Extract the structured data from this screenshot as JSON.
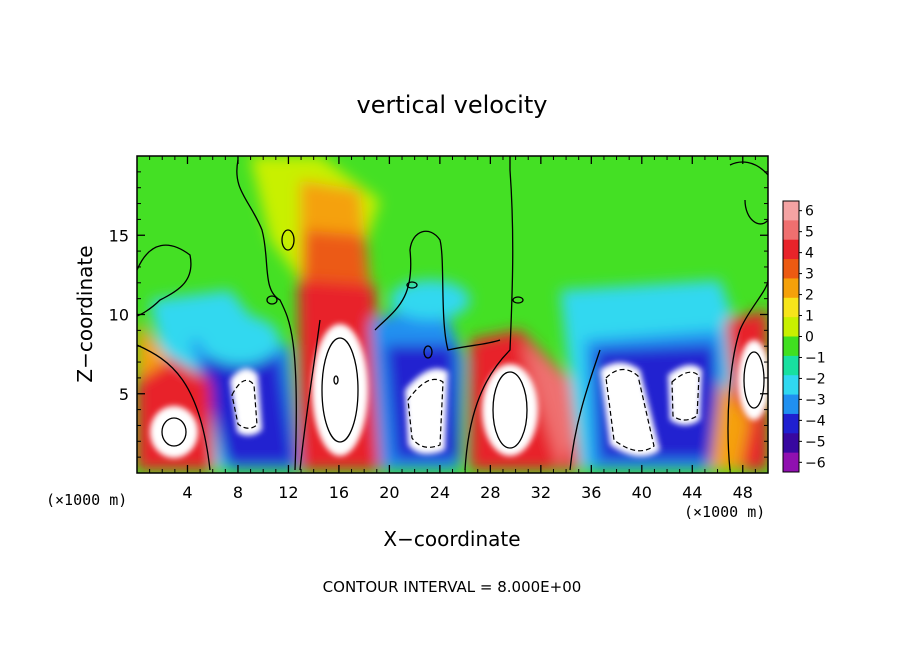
{
  "chart_data": {
    "type": "heatmap",
    "title": "vertical velocity",
    "xlabel": "X−coordinate",
    "ylabel": "Z−coordinate",
    "x_unit_left": "(×1000 m)",
    "x_unit_right": "(×1000 m)",
    "xlim": [
      0,
      50
    ],
    "ylim": [
      0,
      20
    ],
    "x_ticks": [
      4,
      8,
      12,
      16,
      20,
      24,
      28,
      32,
      36,
      40,
      44,
      48
    ],
    "x_tick_labels": [
      "4",
      "8",
      "12",
      "16",
      "20",
      "24",
      "28",
      "32",
      "36",
      "40",
      "44",
      "48"
    ],
    "y_ticks": [
      5,
      10,
      15
    ],
    "y_tick_labels": [
      "5",
      "10",
      "15"
    ],
    "contour_interval_label": "CONTOUR INTERVAL = 8.000E+00",
    "colorbar": {
      "levels": [
        6,
        5,
        4,
        3,
        2,
        1,
        0,
        -1,
        -2,
        -3,
        -4,
        -5,
        -6
      ],
      "labels": [
        "6",
        "5",
        "4",
        "3",
        "2",
        "1",
        "0",
        "−1",
        "−2",
        "−3",
        "−4",
        "−5",
        "−6"
      ],
      "colors": [
        "#f4a3a3",
        "#ef6f6f",
        "#e8232a",
        "#ec5a12",
        "#f5a10a",
        "#f7e51a",
        "#c8f000",
        "#40e020",
        "#18e0a0",
        "#30d8f0",
        "#2090f0",
        "#2020d0",
        "#3808a0",
        "#9010b0"
      ]
    },
    "features": [
      {
        "kind": "updraft",
        "x_center": 3.2,
        "z_top": 4.5
      },
      {
        "kind": "downdraft",
        "x_center": 8.6,
        "z_top": 6.5
      },
      {
        "kind": "updraft",
        "x_center": 16.4,
        "z_top": 10.0
      },
      {
        "kind": "downdraft",
        "x_center": 22.6,
        "z_top": 6.5
      },
      {
        "kind": "updraft",
        "x_center": 29.6,
        "z_top": 7.0
      },
      {
        "kind": "downdraft",
        "x_center": 39.0,
        "z_top": 7.0
      },
      {
        "kind": "downdraft",
        "x_center": 43.6,
        "z_top": 6.0
      },
      {
        "kind": "updraft",
        "x_center": 49.0,
        "z_top": 9.0
      }
    ]
  }
}
